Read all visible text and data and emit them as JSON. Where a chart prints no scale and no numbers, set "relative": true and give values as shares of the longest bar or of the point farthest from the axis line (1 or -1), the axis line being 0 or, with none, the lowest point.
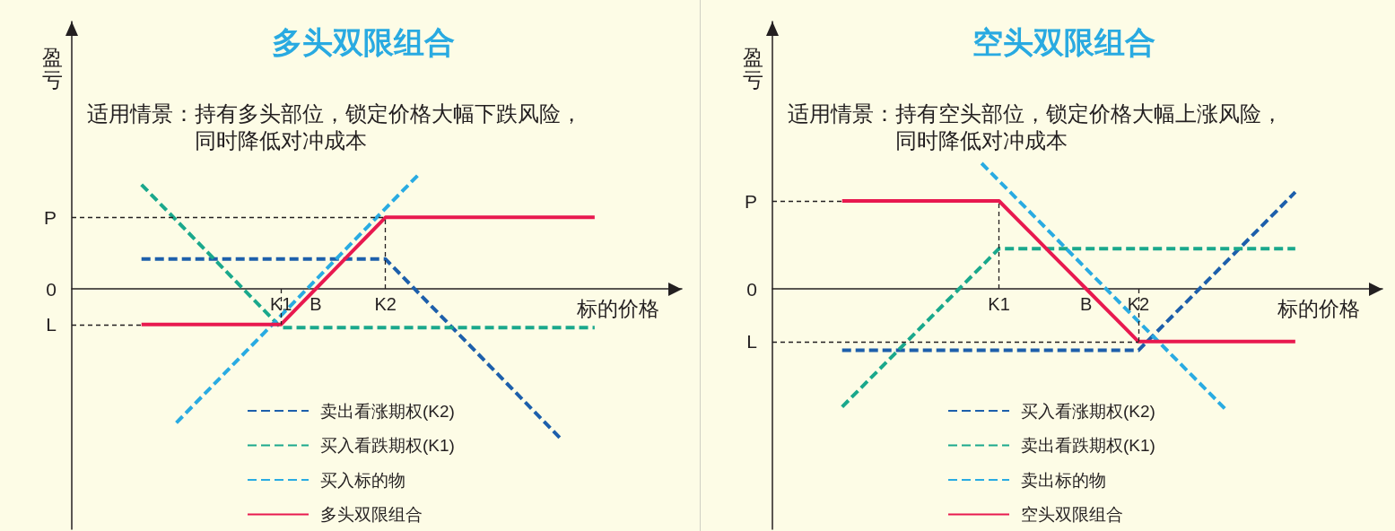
{
  "chart_data": [
    {
      "type": "line",
      "title": "多头双限组合",
      "subtitle": "适用情景：持有多头部位，锁定价格大幅下跌风险，同时降低对冲成本",
      "xlabel": "标的价格",
      "ylabel": "盈亏",
      "relative": true,
      "marker": "none",
      "legend": "bottom",
      "categories": [
        null,
        null,
        null,
        null,
        null,
        null,
        null,
        null,
        null,
        null,
        null,
        null,
        "K1",
        null,
        "B",
        null,
        null,
        null,
        "K2",
        null,
        null,
        null,
        null,
        null,
        null,
        null,
        null,
        null,
        null,
        null,
        null,
        null,
        null,
        null,
        null,
        null
      ],
      "annotations": [
        "0"
      ],
      "ref_lines": [
        {
          "axis": "y",
          "value": 0.48,
          "label": "P",
          "color": "#231f20",
          "line_style": "dashed"
        },
        {
          "axis": "y",
          "value": -0.24,
          "label": "L",
          "color": "#231f20",
          "line_style": "dashed"
        },
        {
          "axis": "x",
          "value": "K1",
          "color": "#231f20",
          "line_style": "dashed"
        },
        {
          "axis": "x",
          "value": "K2",
          "color": "#231f20",
          "line_style": "dashed"
        }
      ],
      "series": [
        {
          "name": "卖出看涨期权(K2)",
          "color": "#1d5fab",
          "line_style": "dashed",
          "values": [
            null,
            null,
            null,
            null,
            0.2,
            0.2,
            0.2,
            0.2,
            0.2,
            0.2,
            0.2,
            0.2,
            0.2,
            0.2,
            0.2,
            0.2,
            0.2,
            0.2,
            0.2,
            0.08,
            -0.04,
            -0.16,
            -0.28,
            -0.4,
            -0.52,
            -0.64,
            -0.76,
            -0.88,
            -1.0,
            null,
            null,
            null,
            null,
            null,
            null,
            null
          ]
        },
        {
          "name": "买入看跌期权(K1)",
          "color": "#1aa88c",
          "line_style": "dashed",
          "values": [
            null,
            null,
            null,
            null,
            0.7,
            0.58,
            0.46,
            0.34,
            0.22,
            0.1,
            -0.02,
            -0.14,
            -0.26,
            -0.26,
            -0.26,
            -0.26,
            -0.26,
            -0.26,
            -0.26,
            -0.26,
            -0.26,
            -0.26,
            -0.26,
            -0.26,
            -0.26,
            -0.26,
            -0.26,
            -0.26,
            -0.26,
            -0.26,
            -0.26,
            null,
            null,
            null,
            null,
            null
          ]
        },
        {
          "name": "买入标的物",
          "color": "#29abe2",
          "line_style": "dashed",
          "values": [
            null,
            null,
            null,
            null,
            null,
            null,
            -0.9,
            -0.78,
            -0.66,
            -0.54,
            -0.42,
            -0.3,
            -0.18,
            -0.06,
            0.06,
            0.18,
            0.3,
            0.42,
            0.54,
            0.66,
            0.78,
            null,
            null,
            null,
            null,
            null,
            null,
            null,
            null,
            null,
            null,
            null,
            null,
            null,
            null,
            null
          ]
        },
        {
          "name": "多头双限组合",
          "color": "#e8194f",
          "line_style": "solid",
          "values": [
            null,
            null,
            null,
            null,
            -0.24,
            -0.24,
            -0.24,
            -0.24,
            -0.24,
            -0.24,
            -0.24,
            -0.24,
            -0.24,
            -0.12,
            0,
            0.12,
            0.24,
            0.36,
            0.48,
            0.48,
            0.48,
            0.48,
            0.48,
            0.48,
            0.48,
            0.48,
            0.48,
            0.48,
            0.48,
            0.48,
            0.48,
            null,
            null,
            null,
            null,
            null
          ]
        }
      ]
    },
    {
      "type": "line",
      "title": "空头双限组合",
      "subtitle": "适用情景：持有空头部位，锁定价格大幅上涨风险，同时降低对冲成本",
      "xlabel": "标的价格",
      "ylabel": "盈亏",
      "relative": true,
      "marker": "none",
      "legend": "bottom",
      "categories": [
        null,
        null,
        null,
        null,
        null,
        null,
        null,
        null,
        null,
        null,
        null,
        null,
        null,
        "K1",
        null,
        null,
        null,
        null,
        "B",
        null,
        null,
        "K2",
        null,
        null,
        null,
        null,
        null,
        null,
        null,
        null,
        null,
        null,
        null,
        null,
        null,
        null
      ],
      "annotations": [
        "0"
      ],
      "ref_lines": [
        {
          "axis": "y",
          "value": 0.7,
          "label": "P",
          "color": "#231f20",
          "line_style": "dashed"
        },
        {
          "axis": "y",
          "value": -0.42,
          "label": "L",
          "color": "#231f20",
          "line_style": "dashed"
        },
        {
          "axis": "x",
          "value": "K1",
          "color": "#231f20",
          "line_style": "dashed"
        },
        {
          "axis": "x",
          "value": "K2",
          "color": "#231f20",
          "line_style": "dashed"
        }
      ],
      "series": [
        {
          "name": "买入看涨期权(K2)",
          "color": "#1d5fab",
          "line_style": "dashed",
          "values": [
            null,
            null,
            null,
            null,
            -0.49,
            -0.49,
            -0.49,
            -0.49,
            -0.49,
            -0.49,
            -0.49,
            -0.49,
            -0.49,
            -0.49,
            -0.49,
            -0.49,
            -0.49,
            -0.49,
            -0.49,
            -0.49,
            -0.49,
            -0.49,
            -0.35,
            -0.21,
            -0.07,
            0.07,
            0.21,
            0.35,
            0.49,
            0.63,
            0.77,
            null,
            null,
            null,
            null,
            null
          ]
        },
        {
          "name": "卖出看跌期权(K1)",
          "color": "#1aa88c",
          "line_style": "dashed",
          "values": [
            null,
            null,
            null,
            null,
            -0.94,
            -0.8,
            -0.66,
            -0.52,
            -0.38,
            -0.24,
            -0.1,
            0.04,
            0.18,
            0.32,
            0.32,
            0.32,
            0.32,
            0.32,
            0.32,
            0.32,
            0.32,
            0.32,
            0.32,
            0.32,
            0.32,
            0.32,
            0.32,
            0.32,
            0.32,
            0.32,
            0.32,
            null,
            null,
            null,
            null,
            null
          ]
        },
        {
          "name": "卖出标的物",
          "color": "#29abe2",
          "line_style": "dashed",
          "values": [
            null,
            null,
            null,
            null,
            null,
            null,
            null,
            null,
            null,
            null,
            null,
            null,
            1.0,
            0.86,
            0.72,
            0.58,
            0.44,
            0.3,
            0.16,
            0.02,
            -0.12,
            -0.26,
            -0.4,
            -0.54,
            -0.68,
            -0.82,
            -0.96,
            null,
            null,
            null,
            null,
            null,
            null,
            null,
            null,
            null
          ]
        },
        {
          "name": "空头双限组合",
          "color": "#e8194f",
          "line_style": "solid",
          "values": [
            null,
            null,
            null,
            null,
            0.7,
            0.7,
            0.7,
            0.7,
            0.7,
            0.7,
            0.7,
            0.7,
            0.7,
            0.7,
            0.56,
            0.42,
            0.28,
            0.14,
            0,
            -0.14,
            -0.28,
            -0.42,
            -0.42,
            -0.42,
            -0.42,
            -0.42,
            -0.42,
            -0.42,
            -0.42,
            -0.42,
            -0.42,
            null,
            null,
            null,
            null,
            null
          ]
        }
      ]
    }
  ]
}
